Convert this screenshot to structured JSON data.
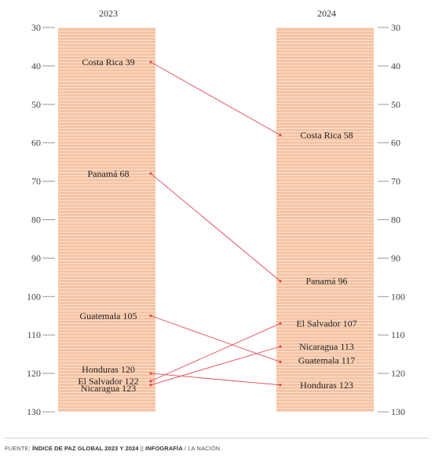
{
  "chart_data": {
    "type": "slope",
    "columns": [
      "2023",
      "2024"
    ],
    "ylim": [
      30,
      130
    ],
    "y_ticks": [
      30,
      40,
      50,
      60,
      70,
      80,
      90,
      100,
      110,
      120,
      130
    ],
    "y_inverted": true,
    "series": [
      {
        "name": "Costa Rica",
        "values": [
          39,
          58
        ]
      },
      {
        "name": "Panamá",
        "values": [
          68,
          96
        ]
      },
      {
        "name": "Guatemala",
        "values": [
          105,
          117
        ]
      },
      {
        "name": "Honduras",
        "values": [
          120,
          123
        ]
      },
      {
        "name": "El Salvador",
        "values": [
          122,
          107
        ]
      },
      {
        "name": "Nicaragua",
        "values": [
          123,
          113
        ]
      }
    ],
    "colors": {
      "band": "#f5c4a4",
      "band_stripe": "#fbe2d1",
      "line": "#e0485a",
      "tick": "#999999"
    }
  },
  "footer": {
    "source_prefix": "FUENTE: ",
    "source_title": "ÍNDICE DE PAZ GLOBAL 2023 Y 2024",
    "separator": "  ||  ",
    "credit_bold": "INFOGRAFÍA",
    "credit_rest": " / LA NACIÓN."
  }
}
